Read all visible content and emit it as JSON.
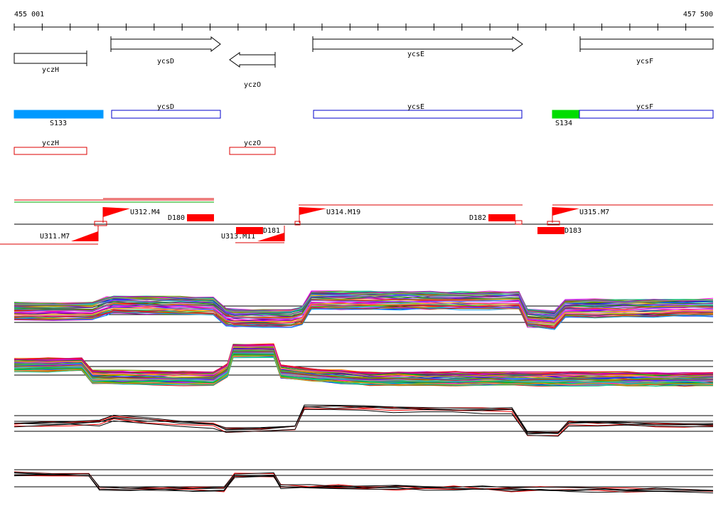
{
  "ruler": {
    "start_label": "455 001",
    "end_label": "457 500"
  },
  "colors": {
    "cds": "#000000",
    "transcript": "#0000cc",
    "operon": "#dd0000",
    "s133": "#0099ff",
    "s134": "#00dd00",
    "segment": "#ff0000"
  },
  "cds": [
    {
      "name": "yczH",
      "strand": "-"
    },
    {
      "name": "ycsD",
      "strand": "+"
    },
    {
      "name": "yczO",
      "strand": "-"
    },
    {
      "name": "ycsE",
      "strand": "+"
    },
    {
      "name": "ycsF",
      "strand": "+"
    }
  ],
  "transcripts": [
    {
      "name": "S133",
      "filled": true,
      "color_key": "s133"
    },
    {
      "name": "ycsD",
      "filled": false
    },
    {
      "name": "ycsE",
      "filled": false
    },
    {
      "name": "S134",
      "filled": true,
      "color_key": "s134"
    },
    {
      "name": "ycsF",
      "filled": false
    }
  ],
  "operons": [
    {
      "name": "yczH"
    },
    {
      "name": "yczO"
    }
  ],
  "segments": {
    "upshifts": [
      "U311.M7",
      "U312.M4",
      "U313.M11",
      "U314.M19",
      "U315.M7"
    ],
    "downshifts": [
      "D180",
      "D181",
      "D182",
      "D183"
    ]
  },
  "expression_panels": [
    {
      "id": "panel-1",
      "kind": "many-conditions"
    },
    {
      "id": "panel-2",
      "kind": "many-conditions"
    },
    {
      "id": "panel-3",
      "kind": "selected-conditions"
    },
    {
      "id": "panel-4",
      "kind": "selected-conditions"
    }
  ]
}
